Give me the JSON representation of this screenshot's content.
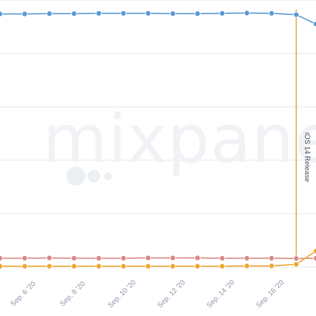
{
  "chart_data": {
    "type": "line",
    "title": "",
    "xlabel": "",
    "ylabel": "",
    "categories": [
      "",
      "Sep. 6 '20",
      "",
      "Sep. 8 '20",
      "",
      "Sep. 10 '20",
      "",
      "Sep. 12 '20",
      "",
      "Sep. 14 '20",
      "",
      "Sep. 16 '20",
      ""
    ],
    "x_tick_labels": [
      "Sep. 6 '20",
      "Sep. 8 '20",
      "Sep. 10 '20",
      "Sep. 12 '20",
      "Sep. 14 '20",
      "Sep. 16 '20"
    ],
    "series": [
      {
        "color": "#5b9bd5",
        "values": [
          94.8,
          94.8,
          94.9,
          94.9,
          95.0,
          95.0,
          95.0,
          94.9,
          94.9,
          95.0,
          95.1,
          95.0,
          94.5,
          91.0
        ]
      },
      {
        "color": "#d98a84",
        "values": [
          3.3,
          3.3,
          3.4,
          3.3,
          3.3,
          3.3,
          3.4,
          3.4,
          3.4,
          3.3,
          3.3,
          3.3,
          3.2,
          3.3
        ]
      },
      {
        "color": "#f0a733",
        "values": [
          0.3,
          0.3,
          0.3,
          0.3,
          0.3,
          0.3,
          0.3,
          0.3,
          0.3,
          0.3,
          0.4,
          0.4,
          1.0,
          6.0
        ]
      }
    ],
    "x_values": [
      5.0,
      5.5,
      6.0,
      6.5,
      7.0,
      7.5,
      8.0,
      8.5,
      9.0,
      9.5,
      10.0,
      10.5,
      11.0,
      11.4
    ],
    "annotation": {
      "label": "iOS 14 Release",
      "x": 11.0,
      "color": "#e3b04b"
    },
    "ylim": [
      0,
      100
    ],
    "grid": true,
    "legend": "none",
    "watermark": "mixpanel"
  }
}
